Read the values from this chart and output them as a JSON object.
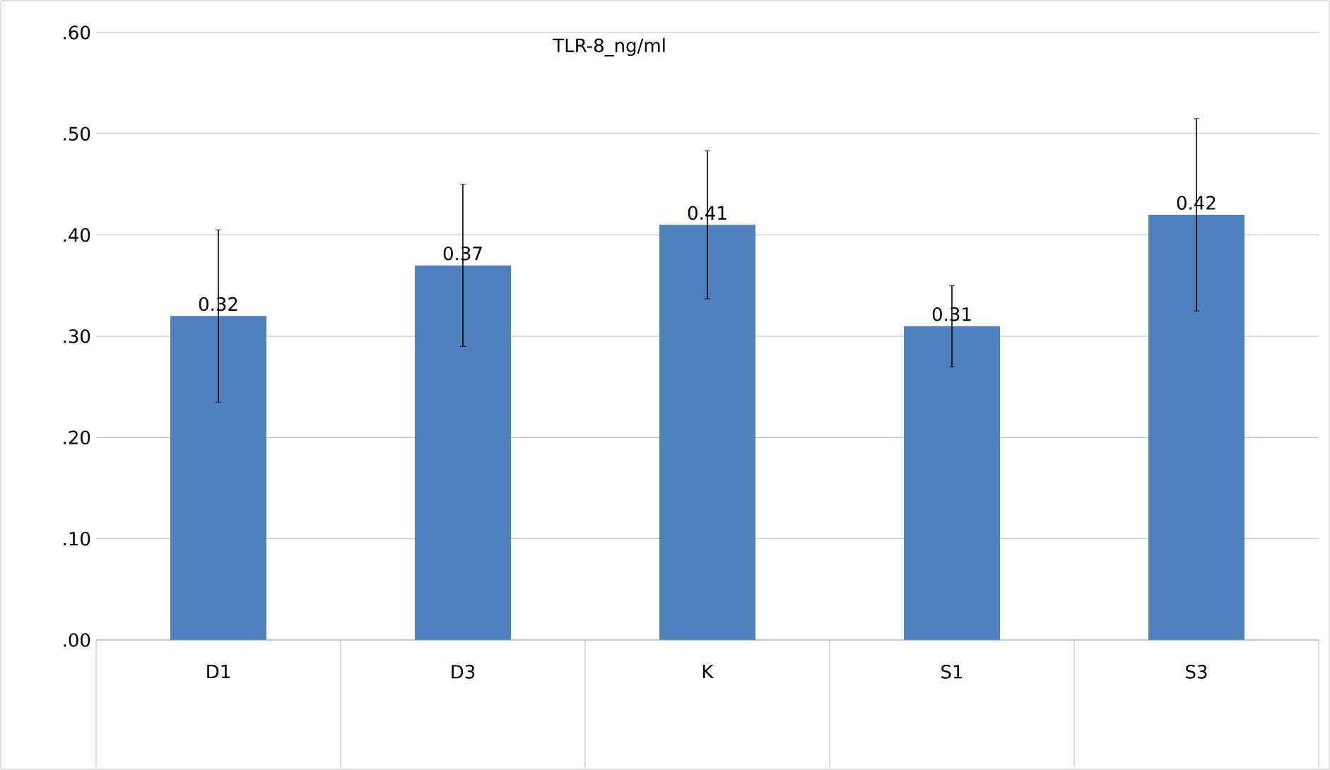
{
  "chart_data": {
    "type": "bar",
    "title": "TLR-8_ng/ml",
    "categories": [
      "D1",
      "D3",
      "K",
      "S1",
      "S3"
    ],
    "values": [
      0.32,
      0.37,
      0.41,
      0.31,
      0.42
    ],
    "value_labels": [
      "0.32",
      "0.37",
      "0.41",
      "0.31",
      "0.42"
    ],
    "errors": [
      0.085,
      0.08,
      0.073,
      0.04,
      0.095
    ],
    "color": "#4f81bd",
    "ylim": [
      0,
      0.6
    ],
    "yticks": [
      {
        "value": 0,
        "label": ".00"
      },
      {
        "value": 0.1,
        "label": ".10"
      },
      {
        "value": 0.2,
        "label": ".20"
      },
      {
        "value": 0.3,
        "label": ".30"
      },
      {
        "value": 0.4,
        "label": ".40"
      },
      {
        "value": 0.5,
        "label": ".50"
      },
      {
        "value": 0.6,
        "label": ".60"
      }
    ],
    "grid": "y"
  }
}
